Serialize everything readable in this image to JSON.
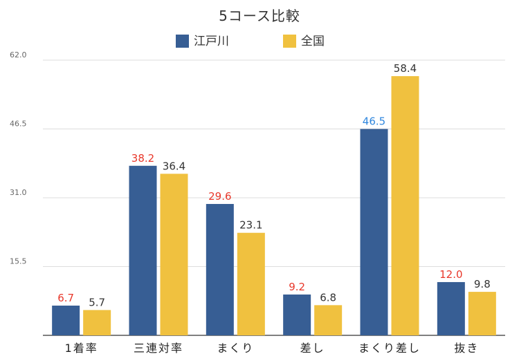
{
  "chart_data": {
    "type": "bar",
    "title": "5コース比較",
    "categories": [
      "1着率",
      "三連対率",
      "まくり",
      "差し",
      "まくり差し",
      "抜き"
    ],
    "series": [
      {
        "name": "江戸川",
        "values": [
          6.7,
          38.2,
          29.6,
          9.2,
          46.5,
          12.0
        ],
        "labels": [
          "6.7",
          "38.2",
          "29.6",
          "9.2",
          "46.5",
          "12.0"
        ]
      },
      {
        "name": "全国",
        "values": [
          5.7,
          36.4,
          23.1,
          6.8,
          58.4,
          9.8
        ],
        "labels": [
          "5.7",
          "36.4",
          "23.1",
          "6.8",
          "58.4",
          "9.8"
        ]
      }
    ],
    "yticks": [
      "62.0",
      "46.5",
      "31.0",
      "15.5"
    ],
    "ytick_values": [
      62.0,
      46.5,
      31.0,
      15.5
    ],
    "ylim": [
      0,
      62.0
    ],
    "grid": true,
    "legend_position": "top-center"
  },
  "colors": {
    "series_0": "#375e94",
    "series_1": "#f0c13f",
    "label_red": "#e8372a",
    "label_blue": "#2e86de",
    "label_dark": "#333333",
    "grid": "#dddddd",
    "axis": "#555555"
  },
  "label_colors": [
    [
      "red",
      "red",
      "red",
      "red",
      "blue",
      "red"
    ],
    [
      "dark",
      "dark",
      "dark",
      "dark",
      "dark",
      "dark"
    ]
  ]
}
